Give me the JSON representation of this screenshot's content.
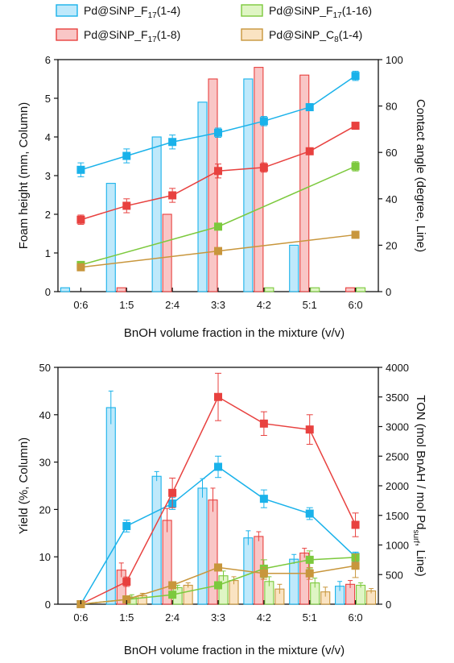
{
  "legend": [
    {
      "label": "Pd@SiNP_F17(1-4)",
      "base": "Pd@SiNP_F",
      "sub": "17",
      "tail": "(1-4)",
      "fill": "#bfe9fb",
      "stroke": "#1ab2ea"
    },
    {
      "label": "Pd@SiNP_F17(1-16)",
      "base": "Pd@SiNP_F",
      "sub": "17",
      "tail": "(1-16)",
      "fill": "#dff5c4",
      "stroke": "#7cc93d"
    },
    {
      "label": "Pd@SiNP_F17(1-8)",
      "base": "Pd@SiNP_F",
      "sub": "17",
      "tail": "(1-8)",
      "fill": "#f9c6c6",
      "stroke": "#e8413f"
    },
    {
      "label": "Pd@SiNP_C8(1-4)",
      "base": "Pd@SiNP_C",
      "sub": "8",
      "tail": "(1-4)",
      "fill": "#fae3c2",
      "stroke": "#c8963c"
    }
  ],
  "chart_data": [
    {
      "type": "bar+line",
      "categories": [
        "0:6",
        "1:5",
        "2:4",
        "3:3",
        "4:2",
        "5:1",
        "6:0"
      ],
      "xlabel": "BnOH volume fraction in the mixture (v/v)",
      "ylabel_left": "Foam height (mm, Column)",
      "ylabel_right": "Contact angle (degree, Line)",
      "ylim_left": [
        0,
        6
      ],
      "yticks_left": [
        "0",
        "1",
        "2",
        "3",
        "4",
        "5",
        "6"
      ],
      "ylim_right": [
        0,
        100
      ],
      "yticks_right": [
        "0",
        "20",
        "40",
        "60",
        "80",
        "100"
      ],
      "bar_series": [
        {
          "series": 0,
          "values": [
            0.1,
            2.8,
            4.0,
            4.9,
            5.5,
            1.2,
            0.0
          ]
        },
        {
          "series": 2,
          "values": [
            0.0,
            0.1,
            2.0,
            5.5,
            5.8,
            5.6,
            0.1
          ]
        },
        {
          "series": 1,
          "values": [
            0.0,
            0.0,
            0.0,
            0.0,
            0.1,
            0.1,
            0.1
          ]
        },
        {
          "series": 3,
          "values": [
            0,
            0,
            0,
            0,
            0,
            0,
            0
          ]
        }
      ],
      "line_series": [
        {
          "series": 0,
          "values": [
            52.5,
            58.5,
            64.5,
            68.5,
            73.5,
            79.5,
            93
          ],
          "errors": [
            3,
            3,
            3,
            2,
            2,
            1,
            2
          ]
        },
        {
          "series": 2,
          "values": [
            31,
            37,
            41.5,
            52,
            53.5,
            60.5,
            71.5
          ],
          "errors": [
            2,
            3,
            3,
            3,
            2,
            1,
            1
          ]
        },
        {
          "series": 1,
          "values": [
            11.5,
            null,
            null,
            28,
            null,
            null,
            54
          ],
          "errors": [
            1,
            null,
            null,
            1,
            null,
            null,
            2
          ]
        },
        {
          "series": 3,
          "values": [
            10.5,
            null,
            null,
            17.5,
            null,
            null,
            24.5
          ],
          "errors": [
            1,
            null,
            null,
            0.5,
            null,
            null,
            0.5
          ]
        }
      ]
    },
    {
      "type": "bar+line",
      "categories": [
        "0:6",
        "1:5",
        "2:4",
        "3:3",
        "4:2",
        "5:1",
        "6:0"
      ],
      "xlabel": "BnOH volume fraction in the mixture (v/v)",
      "ylabel_left": "Yield (%, Column)",
      "ylabel_right_pre": "TON (mol BnAH / mol Pd",
      "ylabel_right_sub": "surf",
      "ylabel_right_post": ", Line)",
      "ylim_left": [
        0,
        50
      ],
      "yticks_left": [
        "0",
        "10",
        "20",
        "30",
        "40",
        "50"
      ],
      "ylim_right": [
        0,
        4000
      ],
      "yticks_right": [
        "0",
        "500",
        "1000",
        "1500",
        "2000",
        "2500",
        "3000",
        "3500",
        "4000"
      ],
      "bar_series": [
        {
          "series": 0,
          "values": [
            0,
            41.5,
            27,
            24.5,
            14,
            9.5,
            3.8
          ],
          "errors": [
            0,
            3.5,
            1,
            2,
            1.5,
            1,
            1
          ]
        },
        {
          "series": 2,
          "values": [
            0,
            7.2,
            17.7,
            22,
            14.3,
            10.8,
            4.2
          ],
          "errors": [
            0,
            1.5,
            2.5,
            2.5,
            1,
            1,
            0.8
          ]
        },
        {
          "series": 1,
          "values": [
            0,
            1.5,
            3.5,
            6,
            4.8,
            4.5,
            4
          ],
          "errors": [
            0,
            0.5,
            0.5,
            1,
            1,
            1,
            0.5
          ]
        },
        {
          "series": 3,
          "values": [
            0,
            1.8,
            4,
            5,
            3.2,
            2.6,
            2.8
          ],
          "errors": [
            0,
            0.5,
            0.5,
            0.8,
            1,
            1,
            0.5
          ]
        }
      ],
      "line_series": [
        {
          "series": 0,
          "values": [
            0,
            1320,
            1700,
            2320,
            1780,
            1530,
            800
          ],
          "errors": [
            0,
            100,
            100,
            180,
            150,
            100,
            80
          ]
        },
        {
          "series": 2,
          "values": [
            0,
            380,
            1880,
            3500,
            3050,
            2950,
            1340
          ],
          "errors": [
            0,
            80,
            250,
            400,
            200,
            250,
            200
          ]
        },
        {
          "series": 1,
          "values": [
            0,
            80,
            160,
            320,
            600,
            750,
            790
          ],
          "errors": [
            0,
            30,
            40,
            60,
            150,
            150,
            60
          ]
        },
        {
          "series": 3,
          "values": [
            0,
            80,
            320,
            620,
            520,
            520,
            650
          ],
          "errors": [
            0,
            30,
            50,
            60,
            100,
            100,
            200
          ]
        }
      ]
    }
  ]
}
